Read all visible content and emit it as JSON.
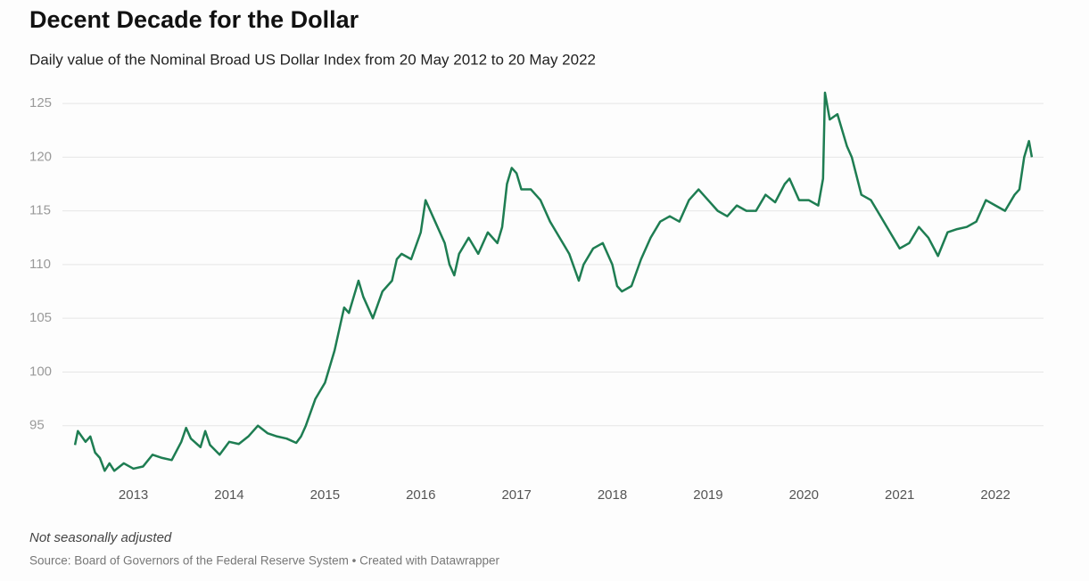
{
  "chart_data": {
    "type": "line",
    "title": "Decent Decade for the Dollar",
    "subtitle": "Daily value of the Nominal Broad US Dollar Index from 20 May 2012 to 20 May 2022",
    "note": "Not seasonally adjusted",
    "source": "Source: Board of Governors of the Federal Reserve System • Created with Datawrapper",
    "color": "#1e7d52",
    "grid": true,
    "xlim": [
      2012.38,
      2022.39
    ],
    "xticks": [
      2013,
      2014,
      2015,
      2016,
      2017,
      2018,
      2019,
      2020,
      2021,
      2022
    ],
    "ylim": [
      90,
      126.5
    ],
    "yticks": [
      95,
      100,
      105,
      110,
      115,
      120,
      125
    ],
    "x": [
      2012.39,
      2012.42,
      2012.5,
      2012.55,
      2012.6,
      2012.65,
      2012.7,
      2012.75,
      2012.8,
      2012.9,
      2013.0,
      2013.1,
      2013.2,
      2013.3,
      2013.4,
      2013.5,
      2013.55,
      2013.6,
      2013.7,
      2013.75,
      2013.8,
      2013.9,
      2014.0,
      2014.1,
      2014.2,
      2014.3,
      2014.4,
      2014.5,
      2014.6,
      2014.7,
      2014.75,
      2014.8,
      2014.9,
      2015.0,
      2015.1,
      2015.15,
      2015.2,
      2015.25,
      2015.3,
      2015.35,
      2015.4,
      2015.5,
      2015.6,
      2015.7,
      2015.75,
      2015.8,
      2015.9,
      2016.0,
      2016.05,
      2016.1,
      2016.15,
      2016.25,
      2016.3,
      2016.35,
      2016.4,
      2016.5,
      2016.6,
      2016.7,
      2016.8,
      2016.85,
      2016.9,
      2016.95,
      2017.0,
      2017.05,
      2017.15,
      2017.25,
      2017.35,
      2017.45,
      2017.55,
      2017.65,
      2017.7,
      2017.8,
      2017.9,
      2018.0,
      2018.05,
      2018.1,
      2018.2,
      2018.3,
      2018.4,
      2018.5,
      2018.6,
      2018.7,
      2018.8,
      2018.9,
      2019.0,
      2019.1,
      2019.2,
      2019.3,
      2019.4,
      2019.5,
      2019.6,
      2019.7,
      2019.8,
      2019.85,
      2019.95,
      2020.05,
      2020.15,
      2020.2,
      2020.22,
      2020.27,
      2020.35,
      2020.45,
      2020.5,
      2020.6,
      2020.7,
      2020.8,
      2020.9,
      2021.0,
      2021.1,
      2021.2,
      2021.3,
      2021.4,
      2021.5,
      2021.6,
      2021.7,
      2021.8,
      2021.9,
      2022.0,
      2022.1,
      2022.2,
      2022.25,
      2022.3,
      2022.35,
      2022.38
    ],
    "values": [
      93.2,
      94.5,
      93.5,
      94.0,
      92.5,
      92.0,
      90.8,
      91.5,
      90.8,
      91.5,
      91.0,
      91.2,
      92.3,
      92.0,
      91.8,
      93.5,
      94.8,
      93.8,
      93.0,
      94.5,
      93.2,
      92.3,
      93.5,
      93.3,
      94.0,
      95.0,
      94.3,
      94.0,
      93.8,
      93.4,
      94.0,
      95.0,
      97.5,
      99.0,
      102.0,
      104.0,
      106.0,
      105.5,
      107.0,
      108.5,
      107.0,
      105.0,
      107.5,
      108.5,
      110.5,
      111.0,
      110.5,
      113.0,
      116.0,
      115.0,
      114.0,
      112.0,
      110.0,
      109.0,
      111.0,
      112.5,
      111.0,
      113.0,
      112.0,
      113.5,
      117.5,
      119.0,
      118.5,
      117.0,
      117.0,
      116.0,
      114.0,
      112.5,
      111.0,
      108.5,
      110.0,
      111.5,
      112.0,
      110.0,
      108.0,
      107.5,
      108.0,
      110.5,
      112.5,
      114.0,
      114.5,
      114.0,
      116.0,
      117.0,
      116.0,
      115.0,
      114.5,
      115.5,
      115.0,
      115.0,
      116.5,
      115.8,
      117.5,
      118.0,
      116.0,
      116.0,
      115.5,
      118.0,
      126.0,
      123.5,
      124.0,
      121.0,
      120.0,
      116.5,
      116.0,
      114.5,
      113.0,
      111.5,
      112.0,
      113.5,
      112.5,
      110.8,
      113.0,
      113.3,
      113.5,
      114.0,
      116.0,
      115.5,
      115.0,
      116.5,
      117.0,
      120.0,
      121.5,
      120.0
    ]
  }
}
